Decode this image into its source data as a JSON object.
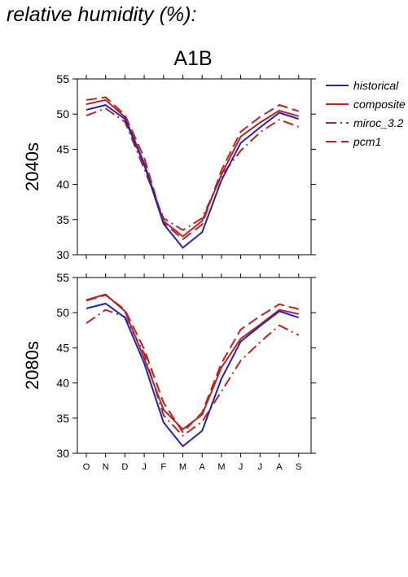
{
  "figure_title": "relative humidity (%):",
  "panel_title": "A1B",
  "legend": [
    {
      "name": "historical",
      "color": "#2222bb",
      "dash": "solid"
    },
    {
      "name": "composite",
      "color": "#bb2222",
      "dash": "solid"
    },
    {
      "name": "miroc_3.2",
      "color": "#bb2222",
      "dash": "dashdot"
    },
    {
      "name": "pcm1",
      "color": "#bb2222",
      "dash": "dashed"
    }
  ],
  "chart_data": [
    {
      "type": "line",
      "ylabel": "2040s",
      "ylim": [
        30,
        55
      ],
      "yticks": [
        30,
        35,
        40,
        45,
        50,
        55
      ],
      "categories": [
        "O",
        "N",
        "D",
        "J",
        "F",
        "M",
        "A",
        "M",
        "J",
        "J",
        "A",
        "S"
      ],
      "series": [
        {
          "name": "historical",
          "values": [
            50.6,
            51.3,
            49.3,
            42.8,
            34.4,
            31.0,
            33.2,
            40.6,
            45.9,
            48.1,
            50.2,
            49.3
          ]
        },
        {
          "name": "composite",
          "values": [
            51.4,
            52.0,
            49.6,
            43.0,
            34.8,
            32.6,
            34.8,
            41.4,
            46.8,
            48.8,
            50.5,
            49.7
          ]
        },
        {
          "name": "miroc_3.2",
          "values": [
            49.8,
            50.8,
            48.9,
            42.2,
            35.2,
            33.5,
            35.2,
            41.2,
            44.8,
            47.4,
            49.2,
            48.2
          ]
        },
        {
          "name": "pcm1",
          "values": [
            52.0,
            52.4,
            49.9,
            43.8,
            34.6,
            32.2,
            34.3,
            42.0,
            47.5,
            49.6,
            51.3,
            50.4
          ]
        }
      ]
    },
    {
      "type": "line",
      "ylabel": "2080s",
      "ylim": [
        30,
        55
      ],
      "yticks": [
        30,
        35,
        40,
        45,
        50,
        55
      ],
      "categories": [
        "O",
        "N",
        "D",
        "J",
        "F",
        "M",
        "A",
        "M",
        "J",
        "J",
        "A",
        "S"
      ],
      "series": [
        {
          "name": "historical",
          "values": [
            50.6,
            51.3,
            49.3,
            42.8,
            34.4,
            31.0,
            33.2,
            40.6,
            45.9,
            48.1,
            50.2,
            49.3
          ]
        },
        {
          "name": "composite",
          "values": [
            51.8,
            52.6,
            50.2,
            43.5,
            36.2,
            33.4,
            35.5,
            42.2,
            46.3,
            48.3,
            50.4,
            49.8
          ]
        },
        {
          "name": "miroc_3.2",
          "values": [
            48.5,
            50.4,
            49.4,
            44.2,
            35.4,
            32.5,
            34.5,
            38.8,
            43.2,
            45.8,
            48.2,
            46.8
          ]
        },
        {
          "name": "pcm1",
          "values": [
            51.7,
            52.5,
            50.4,
            44.8,
            37.2,
            33.0,
            35.8,
            42.8,
            47.6,
            49.5,
            51.2,
            50.5
          ]
        }
      ]
    }
  ]
}
